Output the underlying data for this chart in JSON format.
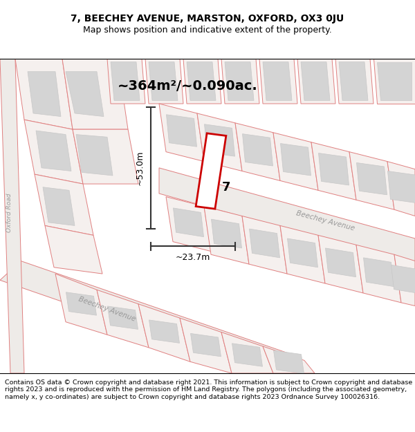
{
  "title_line1": "7, BEECHEY AVENUE, MARSTON, OXFORD, OX3 0JU",
  "title_line2": "Map shows position and indicative extent of the property.",
  "area_text": "~364m²/~0.090ac.",
  "label_7": "7",
  "dim_width": "~23.7m",
  "dim_height": "~53.0m",
  "street_label_lower": "Beechey Avenue",
  "street_label_upper": "Beechey Avenue",
  "road_label": "Oxford Road",
  "footer_text": "Contains OS data © Crown copyright and database right 2021. This information is subject to Crown copyright and database rights 2023 and is reproduced with the permission of HM Land Registry. The polygons (including the associated geometry, namely x, y co-ordinates) are subject to Crown copyright and database rights 2023 Ordnance Survey 100026316.",
  "map_bg": "#f7f4f2",
  "plot_stroke": "#cc0000",
  "line_color": "#e08080",
  "dim_line_color": "#333333",
  "building_fill": "#d4d4d4",
  "building_edge": "#c8c8c8",
  "plot_fill": "#ffffff",
  "figsize": [
    6.0,
    6.25
  ],
  "dpi": 100,
  "title_fontsize": 10,
  "subtitle_fontsize": 9,
  "footer_fontsize": 6.8
}
